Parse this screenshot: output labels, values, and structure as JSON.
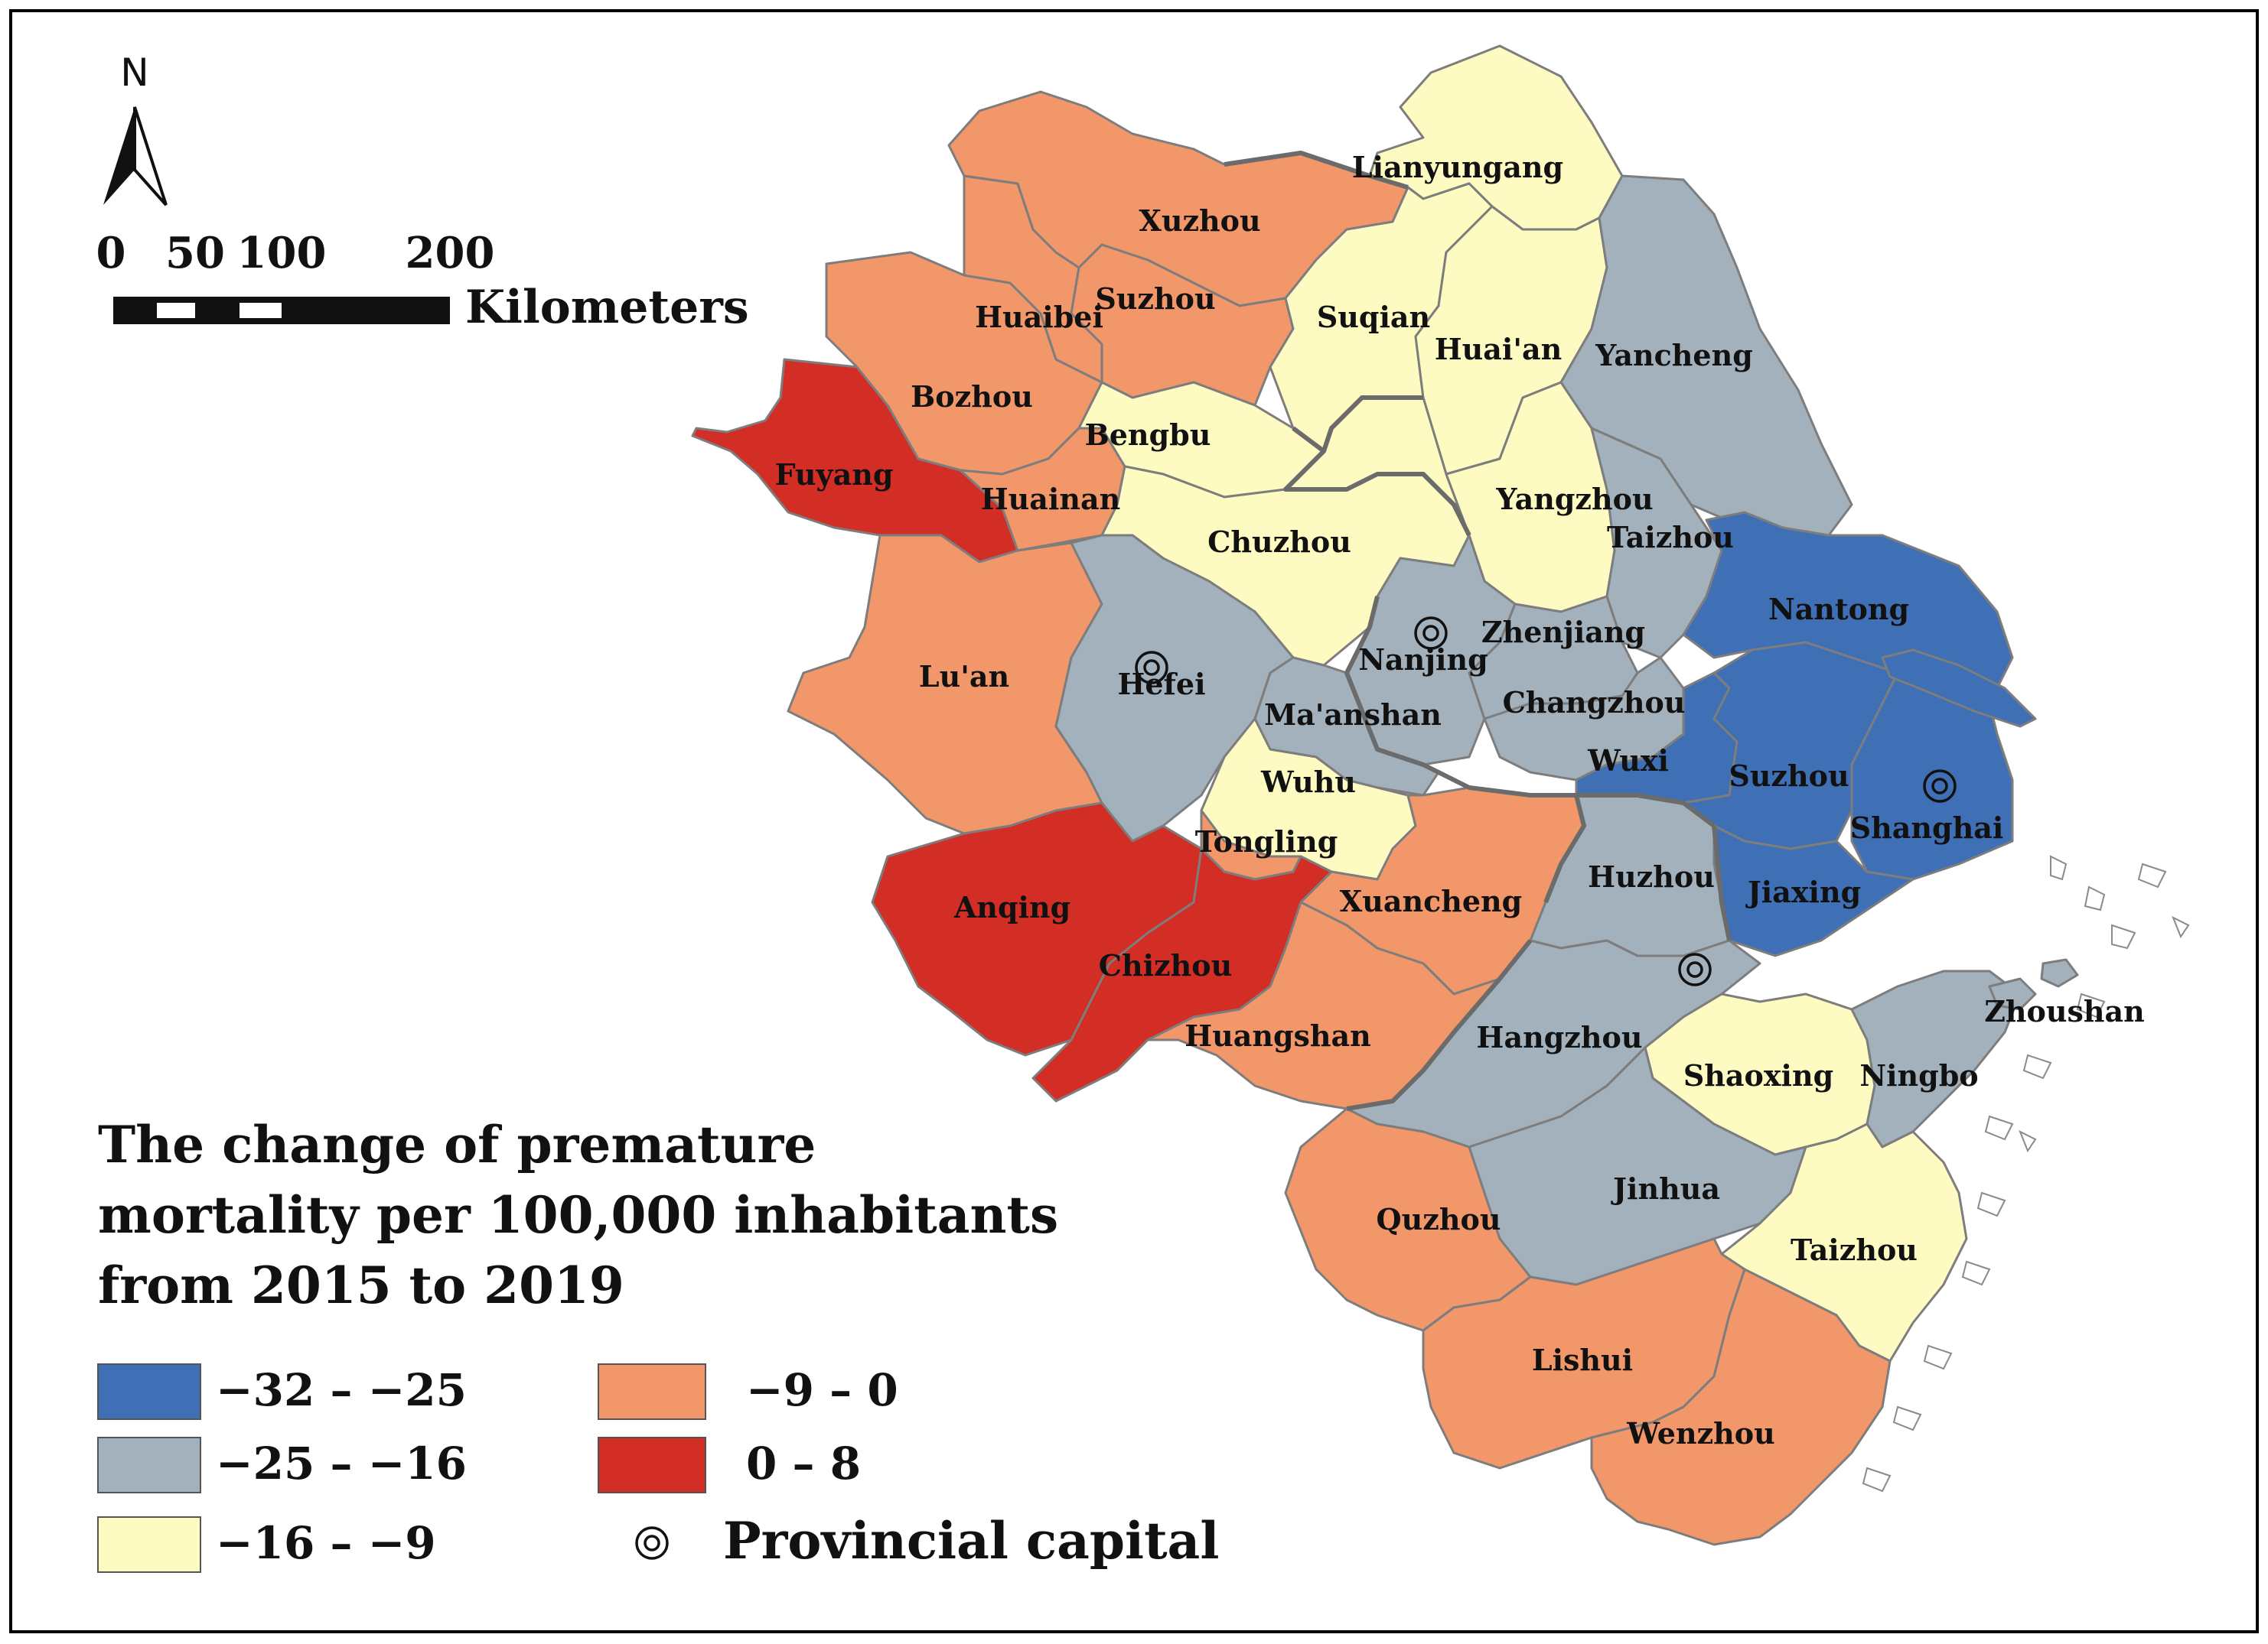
{
  "map": {
    "north_label": "N",
    "scale_bar": {
      "ticks": [
        "0",
        "50",
        "100",
        "200"
      ],
      "unit": "Kilometers"
    },
    "legend": {
      "title_lines": [
        "The change of premature",
        "mortality  per 100,000 inhabitants",
        "from 2015 to 2019"
      ],
      "classes": [
        {
          "label": "−32 – −25",
          "color": "#3f6fb5"
        },
        {
          "label": "−25 – −16",
          "color": "#a2b1bc"
        },
        {
          "label": "−16 – −9",
          "color": "#fdfbc2"
        },
        {
          "label": "−9 – 0",
          "color": "#f1976a"
        },
        {
          "label": "0 – 8",
          "color": "#d32e26"
        }
      ],
      "capital_symbol_label": "Provincial capital"
    },
    "cities": [
      {
        "name": "Lianyungang",
        "class": "−16 – −9"
      },
      {
        "name": "Xuzhou",
        "class": "−9 – 0"
      },
      {
        "name": "Suzhou",
        "class": "−9 – 0"
      },
      {
        "name": "Huaibei",
        "class": "−9 – 0"
      },
      {
        "name": "Suqian",
        "class": "−16 – −9"
      },
      {
        "name": "Huai'an",
        "class": "−16 – −9"
      },
      {
        "name": "Yancheng",
        "class": "−25 – −16"
      },
      {
        "name": "Bozhou",
        "class": "−9 – 0"
      },
      {
        "name": "Bengbu",
        "class": "−16 – −9"
      },
      {
        "name": "Fuyang",
        "class": "0 – 8"
      },
      {
        "name": "Huainan",
        "class": "−9 – 0"
      },
      {
        "name": "Yangzhou",
        "class": "−16 – −9"
      },
      {
        "name": "Chuzhou",
        "class": "−16 – −9"
      },
      {
        "name": "Taizhou",
        "class": "−25 – −16"
      },
      {
        "name": "Nantong",
        "class": "−32 – −25"
      },
      {
        "name": "Lu'an",
        "class": "−9 – 0"
      },
      {
        "name": "Hefei",
        "class": "−25 – −16"
      },
      {
        "name": "Nanjing",
        "class": "−25 – −16"
      },
      {
        "name": "Zhenjiang",
        "class": "−25 – −16"
      },
      {
        "name": "Changzhou",
        "class": "−25 – −16"
      },
      {
        "name": "Ma'anshan",
        "class": "−25 – −16"
      },
      {
        "name": "Wuxi",
        "class": "−32 – −25"
      },
      {
        "name": "Suzhou",
        "class": "−32 – −25"
      },
      {
        "name": "Shanghai",
        "class": "−32 – −25"
      },
      {
        "name": "Wuhu",
        "class": "−16 – −9"
      },
      {
        "name": "Tongling",
        "class": "−9 – 0"
      },
      {
        "name": "Anqing",
        "class": "0 – 8"
      },
      {
        "name": "Chizhou",
        "class": "0 – 8"
      },
      {
        "name": "Xuancheng",
        "class": "−9 – 0"
      },
      {
        "name": "Huzhou",
        "class": "−25 – −16"
      },
      {
        "name": "Jiaxing",
        "class": "−32 – −25"
      },
      {
        "name": "Huangshan",
        "class": "−9 – 0"
      },
      {
        "name": "Hangzhou",
        "class": "−25 – −16"
      },
      {
        "name": "Zhoushan",
        "class": "−25 – −16"
      },
      {
        "name": "Shaoxing",
        "class": "−16 – −9"
      },
      {
        "name": "Ningbo",
        "class": "−25 – −16"
      },
      {
        "name": "Jinhua",
        "class": "−25 – −16"
      },
      {
        "name": "Quzhou",
        "class": "−9 – 0"
      },
      {
        "name": "Taizhou",
        "class": "−16 – −9"
      },
      {
        "name": "Lishui",
        "class": "−9 – 0"
      },
      {
        "name": "Wenzhou",
        "class": "−9 – 0"
      }
    ]
  }
}
